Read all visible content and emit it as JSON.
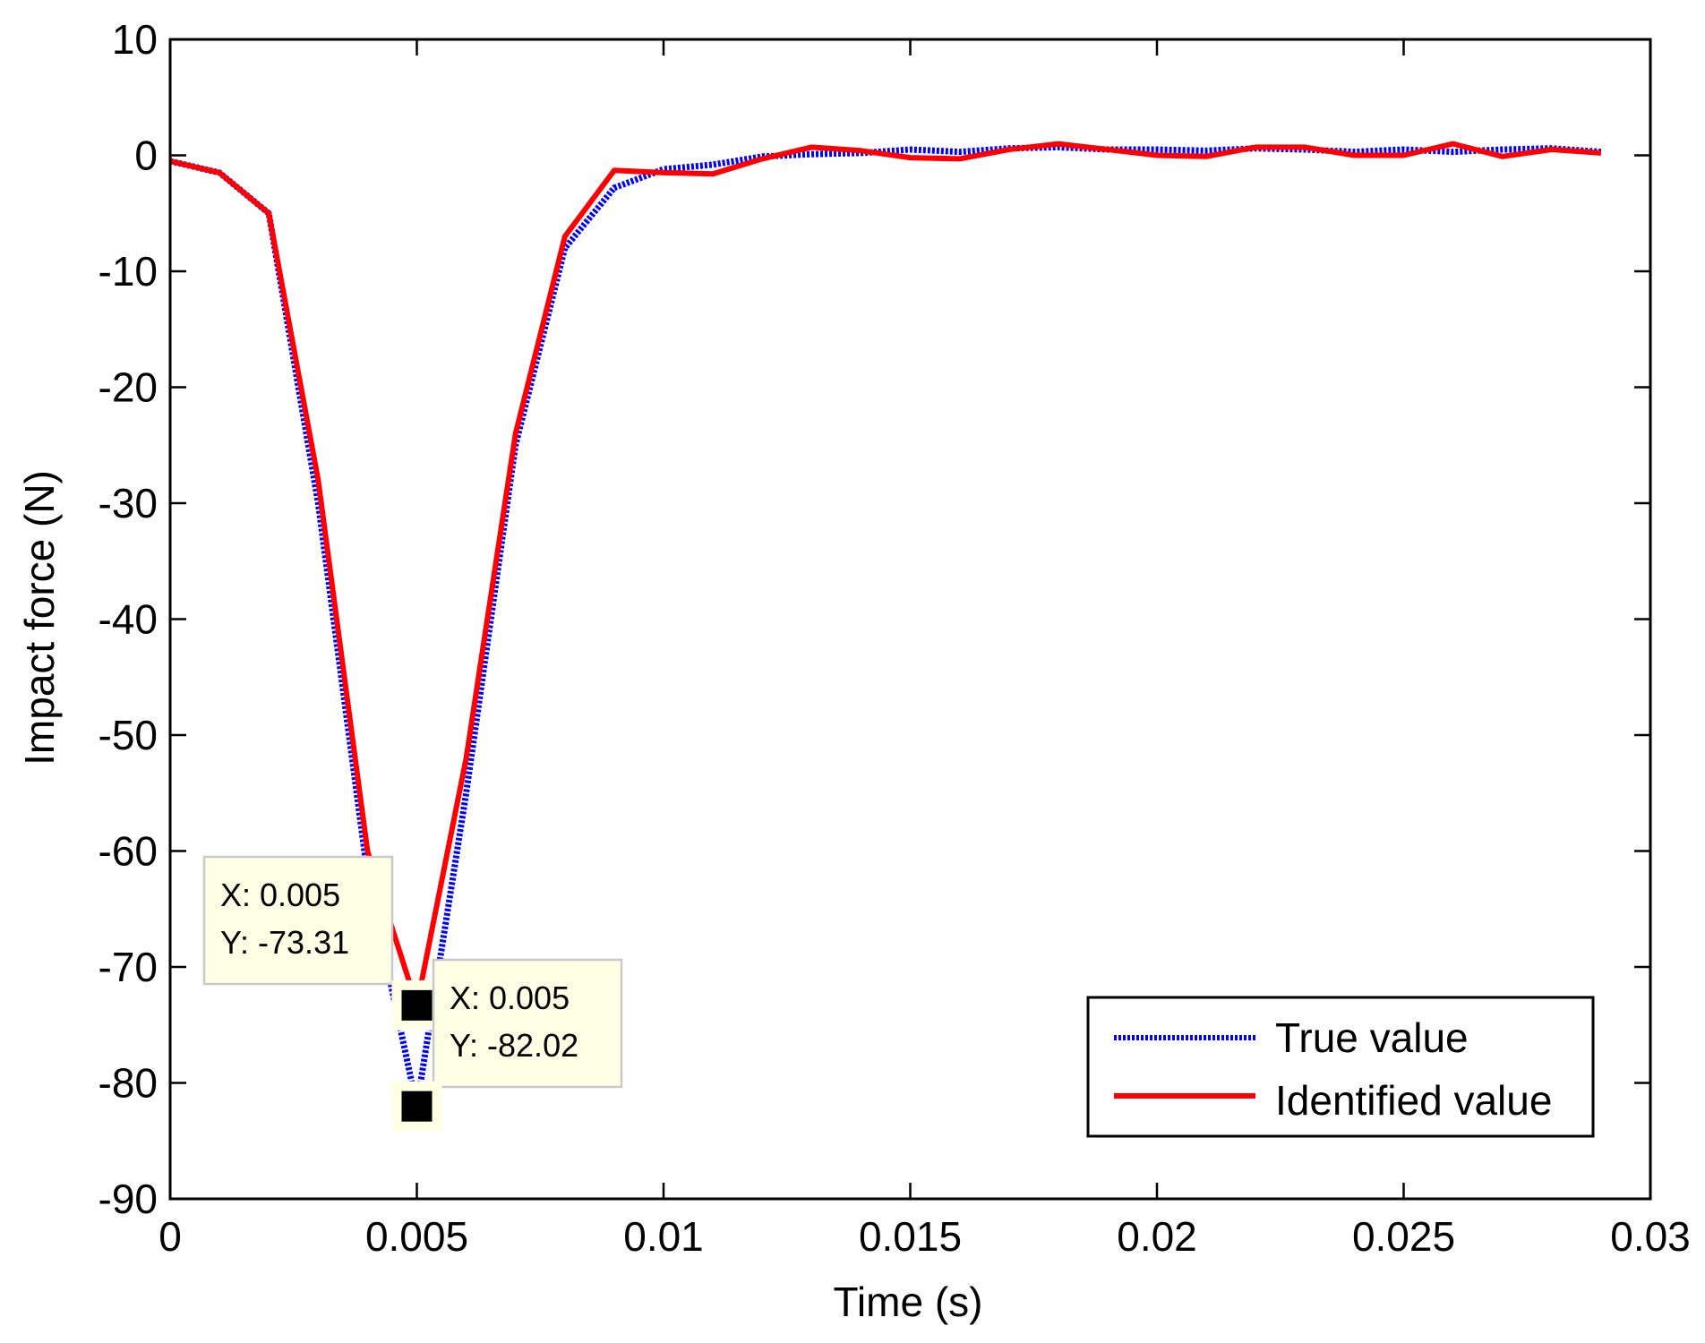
{
  "chart_data": {
    "type": "line",
    "xlabel": "Time (s)",
    "ylabel": "Impact force (N)",
    "xlim": [
      0,
      0.03
    ],
    "ylim": [
      -90,
      10
    ],
    "xticks": [
      0,
      0.005,
      0.01,
      0.015,
      0.02,
      0.025,
      0.03
    ],
    "xtick_labels": [
      "0",
      "0.005",
      "0.01",
      "0.015",
      "0.02",
      "0.025",
      "0.03"
    ],
    "yticks": [
      10,
      0,
      -10,
      -20,
      -30,
      -40,
      -50,
      -60,
      -70,
      -80,
      -90
    ],
    "ytick_labels": [
      "10",
      "0",
      "-10",
      "-20",
      "-30",
      "-40",
      "-50",
      "-60",
      "-70",
      "-80",
      "-90"
    ],
    "series": [
      {
        "name": "True value",
        "style": "dotted",
        "color": "#0000ff",
        "x": [
          0,
          0.001,
          0.002,
          0.003,
          0.004,
          0.005,
          0.006,
          0.007,
          0.008,
          0.009,
          0.01,
          0.011,
          0.012,
          0.013,
          0.014,
          0.015,
          0.016,
          0.017,
          0.018,
          0.019,
          0.02,
          0.021,
          0.022,
          0.023,
          0.024,
          0.025,
          0.026,
          0.027,
          0.028,
          0.029
        ],
        "y": [
          -0.5,
          -1.5,
          -5,
          -30,
          -62,
          -82.02,
          -55,
          -25,
          -8,
          -2.8,
          -1.2,
          -0.8,
          -0.1,
          0.1,
          0.2,
          0.5,
          0.3,
          0.6,
          0.7,
          0.5,
          0.5,
          0.4,
          0.6,
          0.5,
          0.3,
          0.5,
          0.3,
          0.5,
          0.6,
          0.3
        ]
      },
      {
        "name": "Identified value",
        "style": "solid",
        "color": "#ff0000",
        "x": [
          0,
          0.001,
          0.002,
          0.003,
          0.004,
          0.005,
          0.006,
          0.007,
          0.008,
          0.009,
          0.01,
          0.011,
          0.012,
          0.013,
          0.014,
          0.015,
          0.016,
          0.017,
          0.018,
          0.019,
          0.02,
          0.021,
          0.022,
          0.023,
          0.024,
          0.025,
          0.026,
          0.027,
          0.028,
          0.029
        ],
        "y": [
          -0.5,
          -1.5,
          -5,
          -28,
          -60,
          -73.31,
          -52,
          -24,
          -7,
          -1.3,
          -1.5,
          -1.6,
          -0.3,
          0.7,
          0.4,
          -0.2,
          -0.3,
          0.5,
          1.0,
          0.5,
          0.0,
          -0.1,
          0.7,
          0.7,
          0.0,
          0.0,
          1.0,
          -0.1,
          0.5,
          0.2
        ]
      }
    ],
    "legend": {
      "position": "bottom-right",
      "entries": [
        "True value",
        "Identified value"
      ]
    },
    "datatips": [
      {
        "x": 0.005,
        "y": -73.31,
        "line1": "X: 0.005",
        "line2": "Y: -73.31"
      },
      {
        "x": 0.005,
        "y": -82.02,
        "line1": "X: 0.005",
        "line2": "Y: -82.02"
      }
    ]
  }
}
